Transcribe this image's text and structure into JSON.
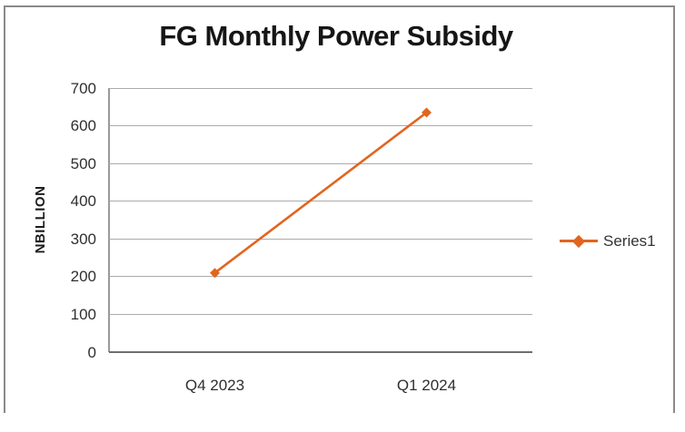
{
  "title": "FG Monthly Power Subsidy",
  "legend": {
    "entries": [
      "Series1"
    ]
  },
  "colors": {
    "series": "#E2641E",
    "gridline": "#ABABAB",
    "axis": "#9A9A9A",
    "zero_axis": "#6E6E6E",
    "text": "#2F2F2F",
    "frame_border": "#8A8A8A"
  },
  "chart_data": {
    "type": "line",
    "categories": [
      "Q4 2023",
      "Q1 2024"
    ],
    "series": [
      {
        "name": "Series1",
        "values": [
          210,
          635
        ],
        "color": "#E2641E",
        "marker": "diamond"
      }
    ],
    "title": "FG Monthly Power Subsidy",
    "xlabel": "",
    "ylabel": "NBILLION",
    "ylim": [
      0,
      700
    ],
    "yticks": [
      0,
      100,
      200,
      300,
      400,
      500,
      600,
      700
    ],
    "grid": true,
    "legend_position": "right"
  }
}
